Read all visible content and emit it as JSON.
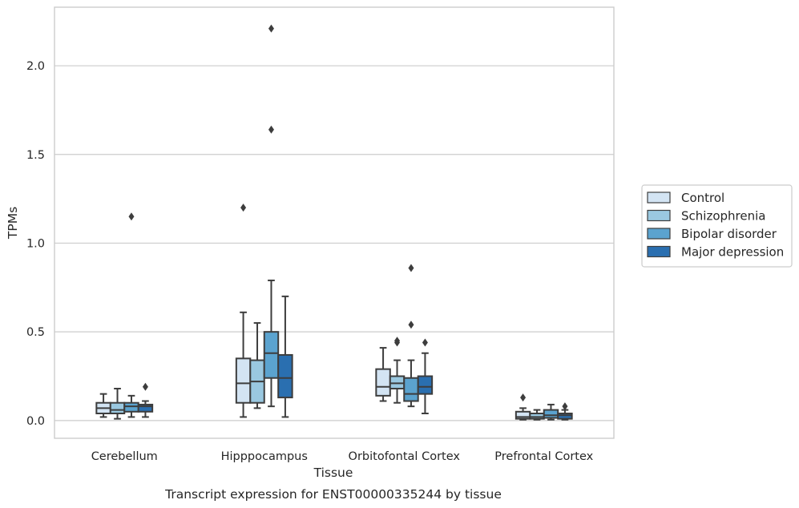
{
  "chart_data": {
    "type": "box",
    "title": "Transcript expression for ENST00000335244 by tissue",
    "xlabel": "Tissue",
    "ylabel": "TPMs",
    "categories": [
      "Cerebellum",
      "Hipppocampus",
      "Orbitofontal Cortex",
      "Prefrontal Cortex"
    ],
    "ylim": [
      -0.1,
      2.33
    ],
    "yticks": [
      0.0,
      0.5,
      1.0,
      1.5,
      2.0
    ],
    "ytick_labels": [
      "0.0",
      "0.5",
      "1.0",
      "1.5",
      "2.0"
    ],
    "grid": "horizontal",
    "legend_position": "right",
    "series": [
      {
        "name": "Control",
        "color": "#d3e4f3",
        "boxes": [
          {
            "whislo": 0.02,
            "q1": 0.04,
            "med": 0.07,
            "q3": 0.1,
            "whishi": 0.15,
            "fliers": []
          },
          {
            "whislo": 0.02,
            "q1": 0.1,
            "med": 0.21,
            "q3": 0.35,
            "whishi": 0.61,
            "fliers": [
              1.2
            ]
          },
          {
            "whislo": 0.11,
            "q1": 0.14,
            "med": 0.19,
            "q3": 0.29,
            "whishi": 0.41,
            "fliers": []
          },
          {
            "whislo": 0.005,
            "q1": 0.01,
            "med": 0.02,
            "q3": 0.05,
            "whishi": 0.07,
            "fliers": [
              0.13
            ]
          }
        ]
      },
      {
        "name": "Schizophrenia",
        "color": "#9ac8e0",
        "boxes": [
          {
            "whislo": 0.01,
            "q1": 0.04,
            "med": 0.06,
            "q3": 0.1,
            "whishi": 0.18,
            "fliers": []
          },
          {
            "whislo": 0.07,
            "q1": 0.1,
            "med": 0.22,
            "q3": 0.34,
            "whishi": 0.55,
            "fliers": []
          },
          {
            "whislo": 0.1,
            "q1": 0.18,
            "med": 0.21,
            "q3": 0.25,
            "whishi": 0.34,
            "fliers": [
              0.44,
              0.45
            ]
          },
          {
            "whislo": 0.005,
            "q1": 0.01,
            "med": 0.02,
            "q3": 0.04,
            "whishi": 0.06,
            "fliers": []
          }
        ]
      },
      {
        "name": "Bipolar disorder",
        "color": "#5ba3cf",
        "boxes": [
          {
            "whislo": 0.02,
            "q1": 0.05,
            "med": 0.08,
            "q3": 0.1,
            "whishi": 0.14,
            "fliers": [
              1.15
            ]
          },
          {
            "whislo": 0.08,
            "q1": 0.24,
            "med": 0.38,
            "q3": 0.5,
            "whishi": 0.79,
            "fliers": [
              1.64,
              2.21
            ]
          },
          {
            "whislo": 0.08,
            "q1": 0.11,
            "med": 0.15,
            "q3": 0.24,
            "whishi": 0.34,
            "fliers": [
              0.54,
              0.86
            ]
          },
          {
            "whislo": 0.005,
            "q1": 0.015,
            "med": 0.03,
            "q3": 0.06,
            "whishi": 0.09,
            "fliers": []
          }
        ]
      },
      {
        "name": "Major depression",
        "color": "#2a6fb0",
        "boxes": [
          {
            "whislo": 0.02,
            "q1": 0.05,
            "med": 0.08,
            "q3": 0.09,
            "whishi": 0.11,
            "fliers": [
              0.19
            ]
          },
          {
            "whislo": 0.02,
            "q1": 0.13,
            "med": 0.24,
            "q3": 0.37,
            "whishi": 0.7,
            "fliers": []
          },
          {
            "whislo": 0.04,
            "q1": 0.15,
            "med": 0.19,
            "q3": 0.25,
            "whishi": 0.38,
            "fliers": [
              0.44
            ]
          },
          {
            "whislo": 0.005,
            "q1": 0.01,
            "med": 0.03,
            "q3": 0.04,
            "whishi": 0.06,
            "fliers": [
              0.08
            ]
          }
        ]
      }
    ]
  }
}
